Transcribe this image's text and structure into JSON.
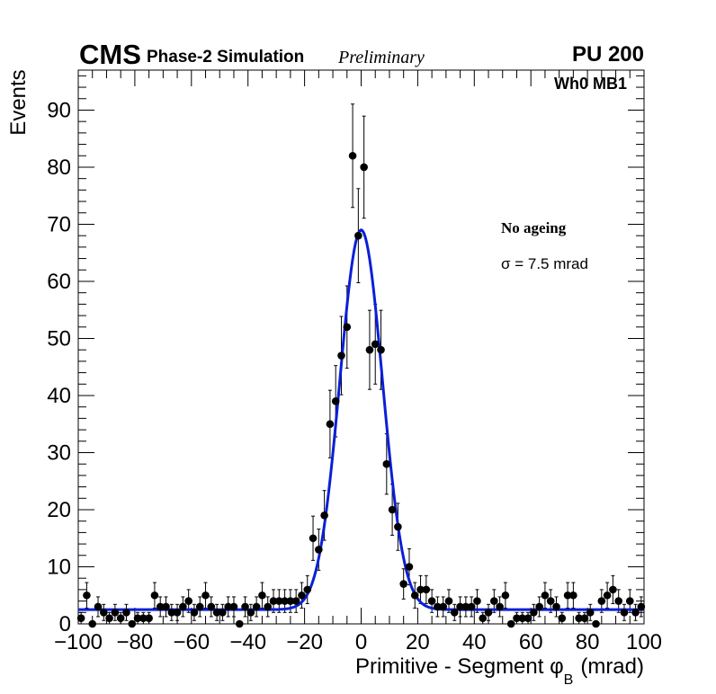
{
  "header": {
    "experiment": "CMS",
    "simulation": "Phase-2 Simulation",
    "status": "Preliminary",
    "pileup": "PU 200",
    "region": "Wh0 MB1"
  },
  "legend": {
    "condition": "No ageing",
    "sigma_text": "σ = 7.5 mrad"
  },
  "colors": {
    "fit": "#0a1fd8",
    "points": "#000000",
    "axes": "#000000"
  },
  "chart_data": {
    "type": "scatter",
    "title": "",
    "xlabel_main": "Primitive - Segment φ",
    "xlabel_sub": "B",
    "xlabel_unit": "(mrad)",
    "ylabel": "Events",
    "xlim": [
      -100,
      100
    ],
    "ylim": [
      0,
      97
    ],
    "xticks": [
      -100,
      -80,
      -60,
      -40,
      -20,
      0,
      20,
      40,
      60,
      80,
      100
    ],
    "xtick_labels": [
      "−100",
      "−80",
      "−60",
      "−40",
      "−20",
      "0",
      "20",
      "40",
      "60",
      "80",
      "100"
    ],
    "yticks": [
      0,
      10,
      20,
      30,
      40,
      50,
      60,
      70,
      80,
      90
    ],
    "ytick_labels": [
      "0",
      "10",
      "20",
      "30",
      "40",
      "50",
      "60",
      "70",
      "80",
      "90"
    ],
    "series": [
      {
        "name": "Data",
        "marker": "circle",
        "errors": "poisson",
        "x": [
          -99,
          -97,
          -95,
          -93,
          -91,
          -89,
          -87,
          -85,
          -83,
          -81,
          -79,
          -77,
          -75,
          -73,
          -71,
          -69,
          -67,
          -65,
          -63,
          -61,
          -59,
          -57,
          -55,
          -53,
          -51,
          -49,
          -47,
          -45,
          -43,
          -41,
          -39,
          -37,
          -35,
          -33,
          -31,
          -29,
          -27,
          -25,
          -23,
          -21,
          -19,
          -17,
          -15,
          -13,
          -11,
          -9,
          -7,
          -5,
          -3,
          -1,
          1,
          3,
          5,
          7,
          9,
          11,
          13,
          15,
          17,
          19,
          21,
          23,
          25,
          27,
          29,
          31,
          33,
          35,
          37,
          39,
          41,
          43,
          45,
          47,
          49,
          51,
          53,
          55,
          57,
          59,
          61,
          63,
          65,
          67,
          69,
          71,
          73,
          75,
          77,
          79,
          81,
          83,
          85,
          87,
          89,
          91,
          93,
          95,
          97,
          99
        ],
        "y": [
          1,
          5,
          0,
          3,
          2,
          1,
          2,
          1,
          2,
          0,
          1,
          1,
          1,
          5,
          3,
          3,
          2,
          2,
          3,
          4,
          2,
          3,
          5,
          3,
          2,
          2,
          3,
          3,
          0,
          3,
          2,
          3,
          5,
          3,
          4,
          4,
          4,
          4,
          4,
          5,
          6,
          15,
          13,
          19,
          35,
          39,
          47,
          52,
          82,
          68,
          80,
          48,
          49,
          48,
          28,
          20,
          17,
          7,
          10,
          5,
          6,
          6,
          4,
          3,
          3,
          4,
          2,
          3,
          3,
          3,
          4,
          1,
          2,
          4,
          3,
          5,
          0,
          1,
          1,
          1,
          2,
          3,
          5,
          4,
          3,
          1,
          5,
          5,
          1,
          1,
          2,
          0,
          4,
          5,
          6,
          4,
          2,
          4,
          2,
          3
        ]
      },
      {
        "name": "Fit",
        "type": "line",
        "function": "gaussian_plus_constant",
        "amplitude": 66.5,
        "mean": 0,
        "sigma": 7.5,
        "constant": 2.5
      }
    ]
  }
}
